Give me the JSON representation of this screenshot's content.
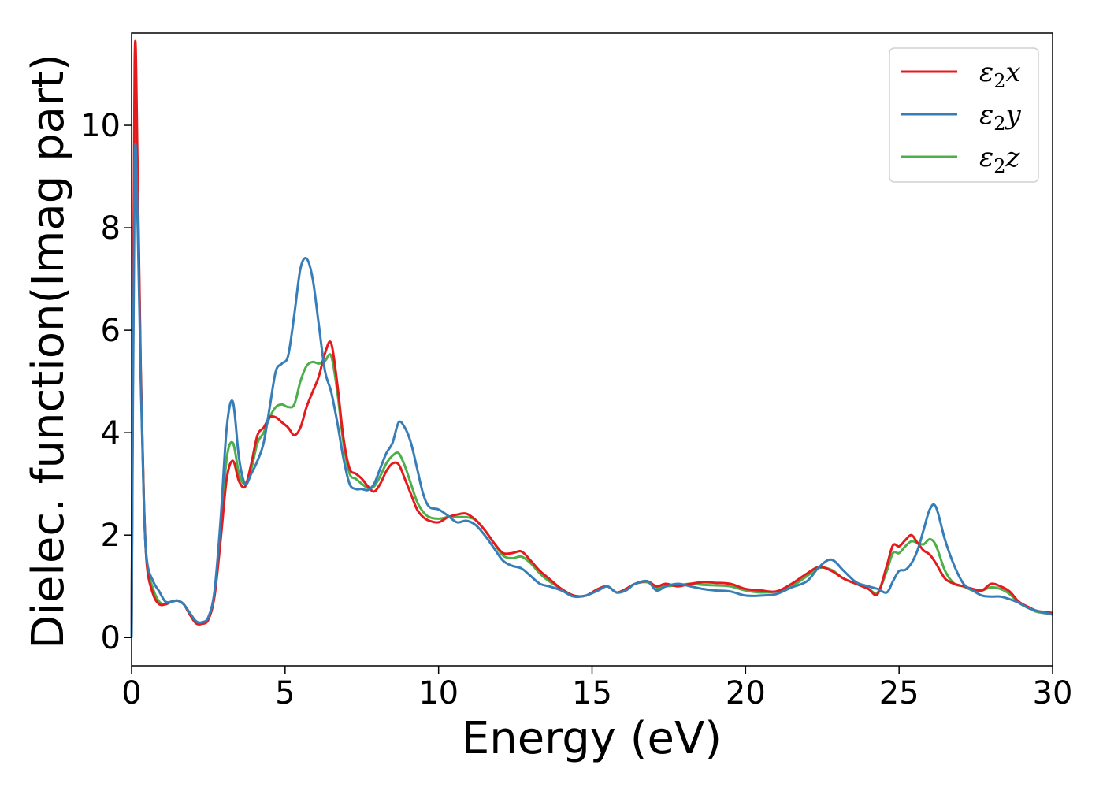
{
  "chart_data": {
    "type": "line",
    "title": "",
    "xlabel": "Energy (eV)",
    "ylabel": "Dielec. function(Imag part)",
    "xlim": [
      0,
      30
    ],
    "ylim": [
      -0.55,
      11.8
    ],
    "x_ticks": [
      "0",
      "5",
      "10",
      "15",
      "20",
      "25",
      "30"
    ],
    "y_ticks": [
      "0",
      "2",
      "4",
      "6",
      "8",
      "10"
    ],
    "grid": false,
    "legend_position": "top-right",
    "series": [
      {
        "name": "ε₂x",
        "legend": {
          "main": "ε",
          "sub": "2",
          "suffix": "x"
        },
        "color": "#e41a1c",
        "x": [
          0.0,
          0.1,
          0.2,
          0.3,
          0.4,
          0.5,
          0.7,
          0.9,
          1.1,
          1.3,
          1.5,
          1.7,
          1.9,
          2.1,
          2.3,
          2.5,
          2.7,
          2.9,
          3.1,
          3.3,
          3.5,
          3.7,
          3.9,
          4.1,
          4.3,
          4.5,
          4.7,
          4.9,
          5.1,
          5.3,
          5.5,
          5.7,
          5.9,
          6.1,
          6.3,
          6.5,
          6.7,
          6.9,
          7.1,
          7.3,
          7.5,
          7.7,
          7.9,
          8.1,
          8.3,
          8.5,
          8.7,
          8.9,
          9.1,
          9.3,
          9.5,
          9.7,
          10.0,
          10.3,
          10.6,
          10.9,
          11.2,
          11.5,
          11.8,
          12.1,
          12.4,
          12.7,
          13.0,
          13.3,
          13.6,
          14.0,
          14.4,
          14.8,
          15.2,
          15.5,
          15.8,
          16.1,
          16.4,
          16.8,
          17.1,
          17.4,
          17.8,
          18.2,
          18.6,
          19.0,
          19.5,
          20.0,
          20.5,
          21.0,
          21.5,
          22.0,
          22.4,
          22.8,
          23.2,
          23.6,
          24.0,
          24.3,
          24.6,
          24.8,
          25.0,
          25.2,
          25.4,
          25.6,
          25.8,
          26.0,
          26.2,
          26.5,
          26.8,
          27.1,
          27.4,
          27.7,
          28.0,
          28.3,
          28.6,
          28.9,
          29.2,
          29.5,
          30.0
        ],
        "y": [
          0.0,
          11.2,
          9.0,
          5.2,
          2.7,
          1.4,
          0.85,
          0.65,
          0.65,
          0.7,
          0.72,
          0.65,
          0.45,
          0.28,
          0.27,
          0.35,
          0.8,
          1.9,
          3.1,
          3.45,
          3.05,
          2.95,
          3.4,
          3.95,
          4.1,
          4.3,
          4.3,
          4.2,
          4.1,
          3.95,
          4.1,
          4.5,
          4.8,
          5.1,
          5.55,
          5.75,
          4.95,
          3.9,
          3.3,
          3.2,
          3.1,
          2.95,
          2.85,
          3.0,
          3.25,
          3.4,
          3.38,
          3.1,
          2.8,
          2.5,
          2.35,
          2.28,
          2.25,
          2.35,
          2.4,
          2.42,
          2.3,
          2.1,
          1.85,
          1.65,
          1.65,
          1.68,
          1.5,
          1.3,
          1.15,
          0.95,
          0.82,
          0.82,
          0.95,
          1.0,
          0.88,
          0.95,
          1.05,
          1.1,
          1.0,
          1.05,
          1.0,
          1.05,
          1.08,
          1.07,
          1.05,
          0.95,
          0.92,
          0.9,
          1.05,
          1.25,
          1.38,
          1.3,
          1.15,
          1.05,
          0.95,
          0.85,
          1.4,
          1.8,
          1.78,
          1.9,
          2.0,
          1.85,
          1.7,
          1.62,
          1.45,
          1.15,
          1.05,
          1.0,
          0.95,
          0.92,
          1.05,
          1.0,
          0.9,
          0.7,
          0.6,
          0.52,
          0.48
        ]
      },
      {
        "name": "ε₂y",
        "legend": {
          "main": "ε",
          "sub": "2",
          "suffix": "y"
        },
        "color": "#377eb8",
        "x": [
          0.0,
          0.1,
          0.2,
          0.3,
          0.4,
          0.5,
          0.7,
          0.9,
          1.1,
          1.3,
          1.5,
          1.7,
          1.9,
          2.1,
          2.3,
          2.5,
          2.7,
          2.9,
          3.1,
          3.3,
          3.5,
          3.7,
          3.9,
          4.1,
          4.3,
          4.5,
          4.7,
          4.9,
          5.1,
          5.3,
          5.5,
          5.7,
          5.9,
          6.1,
          6.3,
          6.5,
          6.7,
          6.9,
          7.1,
          7.3,
          7.5,
          7.7,
          7.9,
          8.1,
          8.3,
          8.5,
          8.7,
          8.9,
          9.1,
          9.3,
          9.5,
          9.7,
          10.0,
          10.3,
          10.6,
          10.9,
          11.2,
          11.5,
          11.8,
          12.1,
          12.4,
          12.7,
          13.0,
          13.3,
          13.6,
          14.0,
          14.4,
          14.8,
          15.2,
          15.5,
          15.8,
          16.1,
          16.4,
          16.8,
          17.1,
          17.4,
          17.8,
          18.2,
          18.6,
          19.0,
          19.5,
          20.0,
          20.5,
          21.0,
          21.5,
          22.0,
          22.4,
          22.8,
          23.2,
          23.6,
          24.0,
          24.3,
          24.6,
          24.8,
          25.0,
          25.2,
          25.4,
          25.6,
          25.8,
          26.0,
          26.2,
          26.5,
          26.8,
          27.1,
          27.4,
          27.7,
          28.0,
          28.3,
          28.6,
          28.9,
          29.2,
          29.5,
          30.0
        ],
        "y": [
          0.0,
          9.15,
          8.0,
          5.0,
          2.6,
          1.5,
          1.1,
          0.9,
          0.7,
          0.7,
          0.72,
          0.65,
          0.48,
          0.32,
          0.3,
          0.4,
          0.9,
          2.3,
          4.1,
          4.6,
          3.5,
          3.0,
          3.2,
          3.45,
          3.8,
          4.5,
          5.2,
          5.35,
          5.5,
          6.3,
          7.2,
          7.4,
          7.0,
          6.1,
          5.2,
          4.8,
          4.2,
          3.5,
          3.0,
          2.9,
          2.9,
          2.88,
          3.0,
          3.3,
          3.6,
          3.8,
          4.2,
          4.1,
          3.8,
          3.3,
          2.8,
          2.55,
          2.5,
          2.38,
          2.25,
          2.28,
          2.2,
          2.0,
          1.75,
          1.5,
          1.4,
          1.35,
          1.2,
          1.05,
          1.0,
          0.92,
          0.8,
          0.82,
          0.92,
          1.0,
          0.88,
          0.92,
          1.05,
          1.1,
          0.92,
          1.0,
          1.05,
          1.0,
          0.95,
          0.92,
          0.9,
          0.82,
          0.82,
          0.85,
          0.98,
          1.1,
          1.38,
          1.52,
          1.3,
          1.08,
          1.0,
          0.95,
          0.88,
          1.1,
          1.3,
          1.32,
          1.45,
          1.7,
          2.1,
          2.5,
          2.55,
          1.9,
          1.4,
          1.05,
          0.92,
          0.82,
          0.8,
          0.8,
          0.75,
          0.68,
          0.58,
          0.52,
          0.45
        ]
      },
      {
        "name": "ε₂z",
        "legend": {
          "main": "ε",
          "sub": "2",
          "suffix": "z"
        },
        "color": "#4daf4a",
        "x": [
          0.0,
          0.1,
          0.2,
          0.3,
          0.4,
          0.5,
          0.7,
          0.9,
          1.1,
          1.3,
          1.5,
          1.7,
          1.9,
          2.1,
          2.3,
          2.5,
          2.7,
          2.9,
          3.1,
          3.3,
          3.5,
          3.7,
          3.9,
          4.1,
          4.3,
          4.5,
          4.7,
          4.9,
          5.1,
          5.3,
          5.5,
          5.7,
          5.9,
          6.1,
          6.3,
          6.5,
          6.7,
          6.9,
          7.1,
          7.3,
          7.5,
          7.7,
          7.9,
          8.1,
          8.3,
          8.5,
          8.7,
          8.9,
          9.1,
          9.3,
          9.5,
          9.7,
          10.0,
          10.3,
          10.6,
          10.9,
          11.2,
          11.5,
          11.8,
          12.1,
          12.4,
          12.7,
          13.0,
          13.3,
          13.6,
          14.0,
          14.4,
          14.8,
          15.2,
          15.5,
          15.8,
          16.1,
          16.4,
          16.8,
          17.1,
          17.4,
          17.8,
          18.2,
          18.6,
          19.0,
          19.5,
          20.0,
          20.5,
          21.0,
          21.5,
          22.0,
          22.4,
          22.8,
          23.2,
          23.6,
          24.0,
          24.3,
          24.6,
          24.8,
          25.0,
          25.2,
          25.4,
          25.6,
          25.8,
          26.0,
          26.2,
          26.5,
          26.8,
          27.1,
          27.4,
          27.7,
          28.0,
          28.3,
          28.6,
          28.9,
          29.2,
          29.5,
          30.0
        ],
        "y": [
          0.0,
          10.6,
          8.7,
          5.1,
          2.65,
          1.45,
          0.95,
          0.7,
          0.65,
          0.7,
          0.72,
          0.65,
          0.45,
          0.28,
          0.28,
          0.36,
          0.85,
          2.1,
          3.5,
          3.8,
          3.2,
          3.0,
          3.3,
          3.8,
          4.0,
          4.3,
          4.5,
          4.55,
          4.5,
          4.55,
          5.0,
          5.3,
          5.38,
          5.35,
          5.4,
          5.5,
          4.8,
          3.8,
          3.2,
          3.1,
          3.0,
          2.92,
          2.95,
          3.15,
          3.4,
          3.55,
          3.6,
          3.35,
          3.0,
          2.65,
          2.45,
          2.35,
          2.32,
          2.35,
          2.35,
          2.35,
          2.3,
          2.1,
          1.85,
          1.6,
          1.55,
          1.58,
          1.45,
          1.25,
          1.1,
          0.95,
          0.82,
          0.82,
          0.95,
          1.0,
          0.88,
          0.95,
          1.05,
          1.08,
          0.98,
          1.0,
          1.02,
          1.05,
          1.03,
          1.02,
          1.0,
          0.92,
          0.88,
          0.9,
          1.0,
          1.2,
          1.36,
          1.32,
          1.15,
          1.05,
          0.95,
          0.88,
          1.3,
          1.65,
          1.65,
          1.78,
          1.88,
          1.85,
          1.82,
          1.92,
          1.8,
          1.3,
          1.05,
          1.0,
          0.92,
          0.92,
          0.98,
          0.95,
          0.85,
          0.68,
          0.58,
          0.5,
          0.46
        ]
      }
    ]
  }
}
